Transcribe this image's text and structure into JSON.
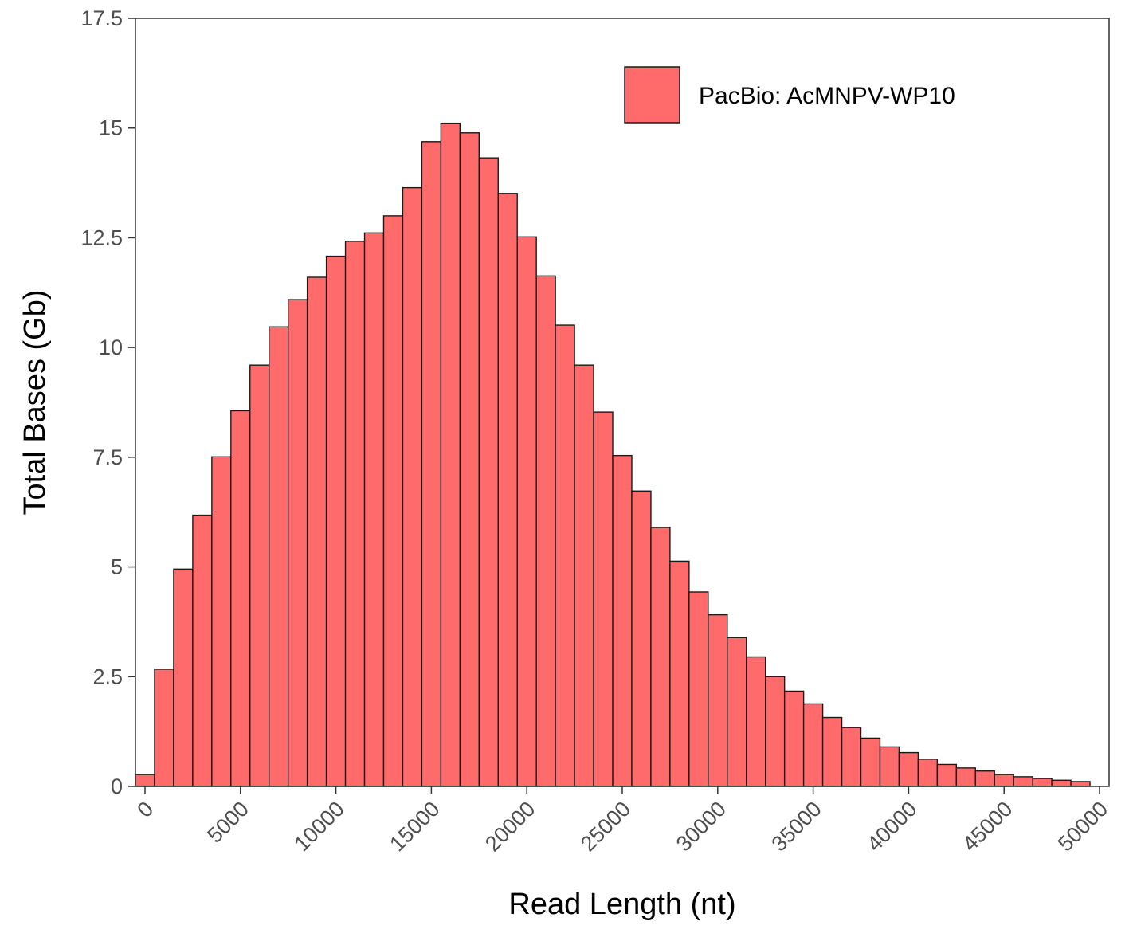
{
  "chart_data": {
    "type": "bar",
    "xlabel": "Read Length (nt)",
    "ylabel": "Total Bases (Gb)",
    "xlim": [
      -500,
      50500
    ],
    "ylim": [
      0,
      17.5
    ],
    "x_ticks": [
      0,
      5000,
      10000,
      15000,
      20000,
      25000,
      30000,
      35000,
      40000,
      45000,
      50000
    ],
    "y_ticks": [
      0,
      2.5,
      5,
      7.5,
      10,
      12.5,
      15,
      17.5
    ],
    "x_tick_labels": [
      "0",
      "5000",
      "10000",
      "15000",
      "20000",
      "25000",
      "30000",
      "35000",
      "40000",
      "45000",
      "50000"
    ],
    "y_tick_labels": [
      "0",
      "2.5",
      "5",
      "7.5",
      "10",
      "12.5",
      "15",
      "17.5"
    ],
    "bin_width": 1000,
    "grid": false,
    "legend_position": "top-right",
    "colors": {
      "fill": "#FF6B6B",
      "stroke": "#1a1a1a",
      "axis": "#333333"
    },
    "series": [
      {
        "name": "PacBio: AcMNPV-WP10",
        "x": [
          0,
          1000,
          2000,
          3000,
          4000,
          5000,
          6000,
          7000,
          8000,
          9000,
          10000,
          11000,
          12000,
          13000,
          14000,
          15000,
          16000,
          17000,
          18000,
          19000,
          20000,
          21000,
          22000,
          23000,
          24000,
          25000,
          26000,
          27000,
          28000,
          29000,
          30000,
          31000,
          32000,
          33000,
          34000,
          35000,
          36000,
          37000,
          38000,
          39000,
          40000,
          41000,
          42000,
          43000,
          44000,
          45000,
          46000,
          47000,
          48000,
          49000
        ],
        "values": [
          0.27,
          2.67,
          4.95,
          6.18,
          7.51,
          8.56,
          9.6,
          10.47,
          11.09,
          11.6,
          12.08,
          12.42,
          12.61,
          13.0,
          13.64,
          14.69,
          15.11,
          14.89,
          14.32,
          13.51,
          12.52,
          11.63,
          10.51,
          9.6,
          8.53,
          7.54,
          6.73,
          5.9,
          5.13,
          4.43,
          3.91,
          3.39,
          2.95,
          2.5,
          2.17,
          1.88,
          1.57,
          1.34,
          1.1,
          0.9,
          0.77,
          0.62,
          0.5,
          0.42,
          0.35,
          0.27,
          0.22,
          0.18,
          0.14,
          0.11
        ]
      }
    ]
  }
}
